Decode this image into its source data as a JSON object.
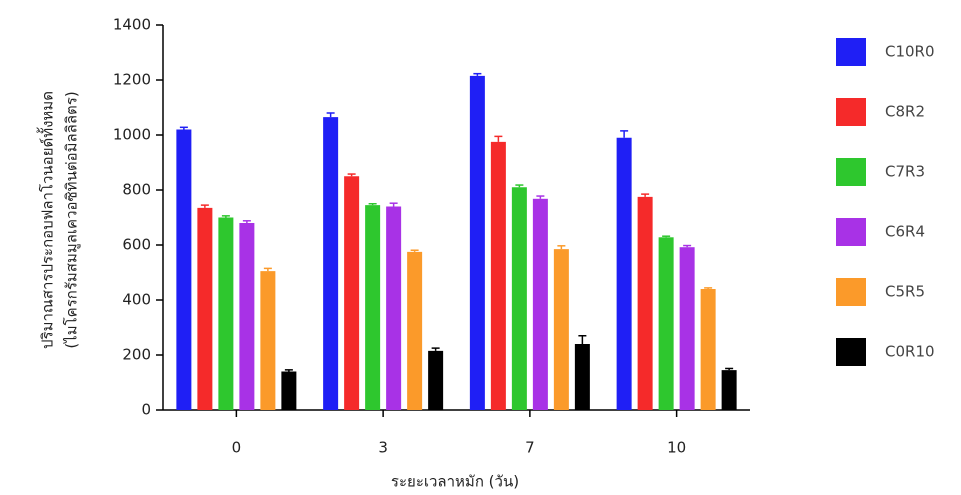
{
  "chart_data": {
    "type": "bar",
    "x_label": "ระยะเวลาหมัก (วัน)",
    "y_label": [
      "ปริมาณสารประกอบฟลาโวนอยด์ทั้งหมด",
      "(ไมโครกรัมสมมูลเควอซิทินต่อมิลลิลิตร)"
    ],
    "categories": [
      "0",
      "3",
      "7",
      "10"
    ],
    "series": [
      {
        "name": "C10R0",
        "color": "#1f1ff5",
        "values": [
          1020,
          1065,
          1215,
          990
        ],
        "errors": [
          8,
          15,
          8,
          25
        ]
      },
      {
        "name": "C8R2",
        "color": "#f52a2a",
        "values": [
          735,
          850,
          975,
          775
        ],
        "errors": [
          10,
          8,
          20,
          10
        ]
      },
      {
        "name": "C7R3",
        "color": "#2ec72e",
        "values": [
          700,
          745,
          810,
          628
        ],
        "errors": [
          6,
          5,
          8,
          4
        ]
      },
      {
        "name": "C6R4",
        "color": "#a832e6",
        "values": [
          680,
          740,
          768,
          592
        ],
        "errors": [
          8,
          12,
          10,
          6
        ]
      },
      {
        "name": "C5R5",
        "color": "#fb9a2a",
        "values": [
          505,
          575,
          585,
          440
        ],
        "errors": [
          10,
          6,
          12,
          4
        ]
      },
      {
        "name": "C0R10",
        "color": "#000000",
        "values": [
          140,
          215,
          240,
          145
        ],
        "errors": [
          6,
          10,
          30,
          6
        ]
      }
    ],
    "ylim": [
      0,
      1400
    ],
    "yticks": [
      0,
      200,
      400,
      600,
      800,
      1000,
      1200,
      1400
    ],
    "legend": "right"
  }
}
